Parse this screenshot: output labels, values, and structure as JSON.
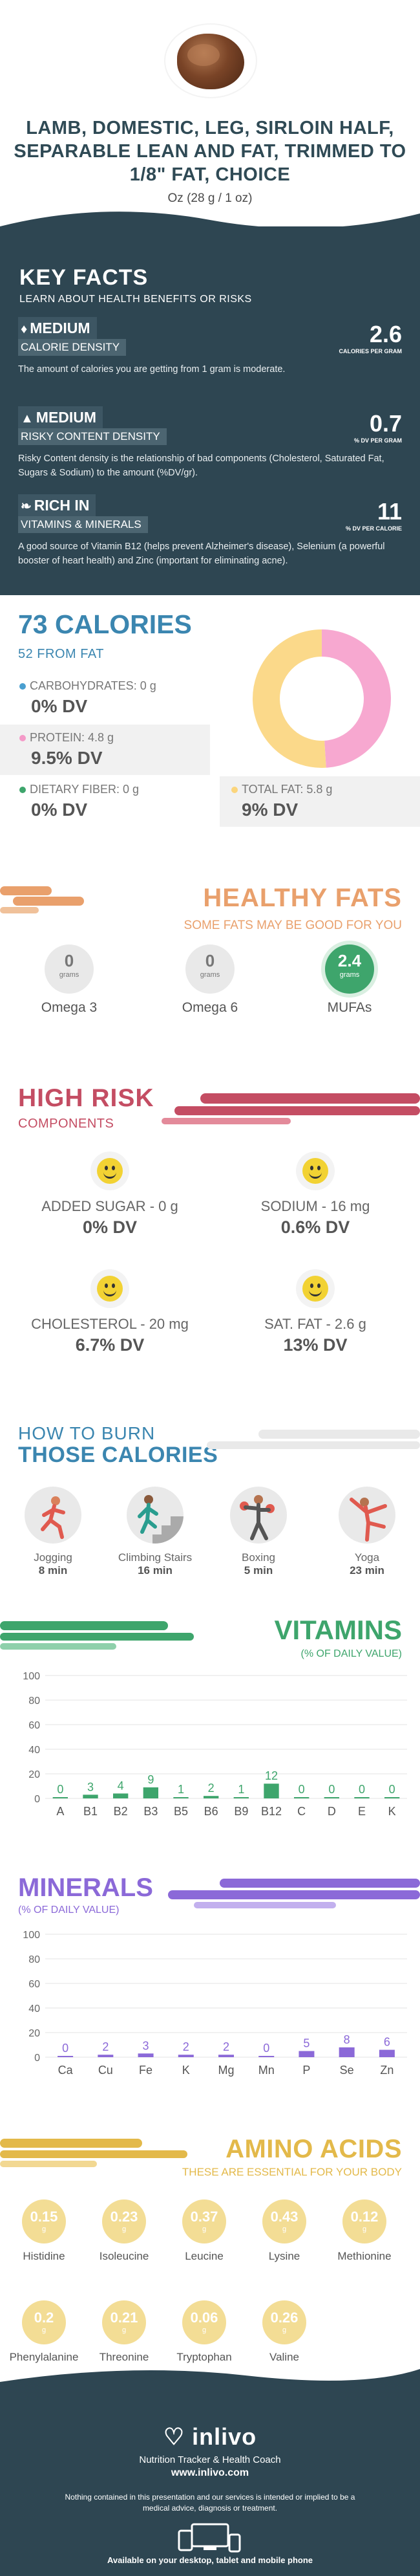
{
  "header": {
    "title": "LAMB, DOMESTIC, LEG, SIRLOIN HALF, SEPARABLE LEAN AND FAT, TRIMMED TO 1/8\" FAT, CHOICE",
    "serving": "Oz (28 g / 1 oz)"
  },
  "key_facts": {
    "title": "KEY FACTS",
    "subtitle": "LEARN ABOUT HEALTH BENEFITS OR RISKS",
    "facts": [
      {
        "level": "MEDIUM",
        "label": "CALORIE DENSITY",
        "value": "2.6",
        "unit": "CALORIES PER GRAM",
        "icon": "flame-icon",
        "desc": "The amount of calories you are getting from 1 gram is moderate."
      },
      {
        "level": "MEDIUM",
        "label": "RISKY CONTENT DENSITY",
        "value": "0.7",
        "unit": "% DV PER GRAM",
        "icon": "warning-icon",
        "desc": "Risky Content density is the relationship of bad components (Cholesterol, Saturated Fat, Sugars & Sodium) to the amount (%DV/gr)."
      },
      {
        "level": "RICH  IN",
        "label": "VITAMINS & MINERALS",
        "value": "11",
        "unit": "% DV PER CALORIE",
        "icon": "leaf-icon",
        "desc": "A good source of Vitamin B12 (helps prevent Alzheimer's disease), Selenium (a powerful booster of heart health) and Zinc (important for eliminating acne)."
      }
    ]
  },
  "calories": {
    "title": "73 CALORIES",
    "subtitle": "52 FROM FAT",
    "nutrients": [
      {
        "label": "CARBOHYDRATES: 0 g",
        "dv": "0% DV",
        "color": "#4a9fd0"
      },
      {
        "label": "PROTEIN: 4.8 g",
        "dv": "9.5% DV",
        "color": "#f49ac8"
      },
      {
        "label": "DIETARY FIBER: 0 g",
        "dv": "0% DV",
        "color": "#3ea56c"
      },
      {
        "label": "TOTAL FAT: 5.8 g",
        "dv": "9% DV",
        "color": "#fbd57c"
      }
    ],
    "donut": {
      "protein_fraction": 0.49,
      "fat_fraction": 0.51,
      "protein_color": "#f7a8d0",
      "fat_color": "#fbd98a"
    }
  },
  "healthy_fats": {
    "title": "HEALTHY FATS",
    "subtitle": "SOME FATS MAY BE GOOD FOR YOU",
    "items": [
      {
        "value": "0",
        "unit": "grams",
        "label": "Omega 3"
      },
      {
        "value": "0",
        "unit": "grams",
        "label": "Omega 6"
      },
      {
        "value": "2.4",
        "unit": "grams",
        "label": "MUFAs"
      }
    ]
  },
  "high_risk": {
    "title": "HIGH RISK",
    "subtitle": "COMPONENTS",
    "items": [
      {
        "label": "ADDED SUGAR - 0 g",
        "dv": "0% DV"
      },
      {
        "label": "SODIUM - 16 mg",
        "dv": "0.6% DV"
      },
      {
        "label": "CHOLESTEROL - 20 mg",
        "dv": "6.7% DV"
      },
      {
        "label": "SAT. FAT - 2.6 g",
        "dv": "13% DV"
      }
    ]
  },
  "burn": {
    "title1": "HOW TO BURN",
    "title2": "THOSE CALORIES",
    "activities": [
      {
        "label": "Jogging",
        "minutes": "8 min",
        "icon": "jogging-icon"
      },
      {
        "label": "Climbing Stairs",
        "minutes": "16 min",
        "icon": "stairs-icon"
      },
      {
        "label": "Boxing",
        "minutes": "5 min",
        "icon": "boxing-icon"
      },
      {
        "label": "Yoga",
        "minutes": "23 min",
        "icon": "yoga-icon"
      }
    ]
  },
  "vitamins": {
    "title": "VITAMINS",
    "subtitle": "(% OF DAILY VALUE)",
    "chart_data": {
      "type": "bar",
      "categories": [
        "A",
        "B1",
        "B2",
        "B3",
        "B5",
        "B6",
        "B9",
        "B12",
        "C",
        "D",
        "E",
        "K"
      ],
      "values": [
        0,
        3,
        4,
        9,
        1,
        2,
        1,
        12,
        0,
        0,
        0,
        0
      ],
      "ylim": [
        0,
        100
      ],
      "yticks": [
        0,
        20,
        40,
        60,
        80,
        100
      ],
      "color": "#3ea56c"
    }
  },
  "minerals": {
    "title": "MINERALS",
    "subtitle": "(% OF DAILY VALUE)",
    "chart_data": {
      "type": "bar",
      "categories": [
        "Ca",
        "Cu",
        "Fe",
        "K",
        "Mg",
        "Mn",
        "P",
        "Se",
        "Zn"
      ],
      "values": [
        0,
        2,
        3,
        2,
        2,
        0,
        5,
        8,
        6
      ],
      "ylim": [
        0,
        100
      ],
      "yticks": [
        0,
        20,
        40,
        60,
        80,
        100
      ],
      "color": "#8b69d8"
    }
  },
  "amino": {
    "title": "AMINO ACIDS",
    "subtitle": "THESE ARE ESSENTIAL FOR YOUR BODY",
    "items": [
      {
        "value": "0.15",
        "unit": "g",
        "label": "Histidine"
      },
      {
        "value": "0.23",
        "unit": "g",
        "label": "Isoleucine"
      },
      {
        "value": "0.37",
        "unit": "g",
        "label": "Leucine"
      },
      {
        "value": "0.43",
        "unit": "g",
        "label": "Lysine"
      },
      {
        "value": "0.12",
        "unit": "g",
        "label": "Methionine"
      },
      {
        "value": "0.2",
        "unit": "g",
        "label": "Phenylalanine"
      },
      {
        "value": "0.21",
        "unit": "g",
        "label": "Threonine"
      },
      {
        "value": "0.06",
        "unit": "g",
        "label": "Tryptophan"
      },
      {
        "value": "0.26",
        "unit": "g",
        "label": "Valine"
      }
    ]
  },
  "footer": {
    "logo": "inlivo",
    "tagline": "Nutrition Tracker & Health Coach",
    "site": "www.inlivo.com",
    "disclaimer": "Nothing contained in this presentation and our services is intended or implied to be a medical advice, diagnosis or treatment.",
    "available": "Available on your desktop, tablet and mobile phone"
  }
}
